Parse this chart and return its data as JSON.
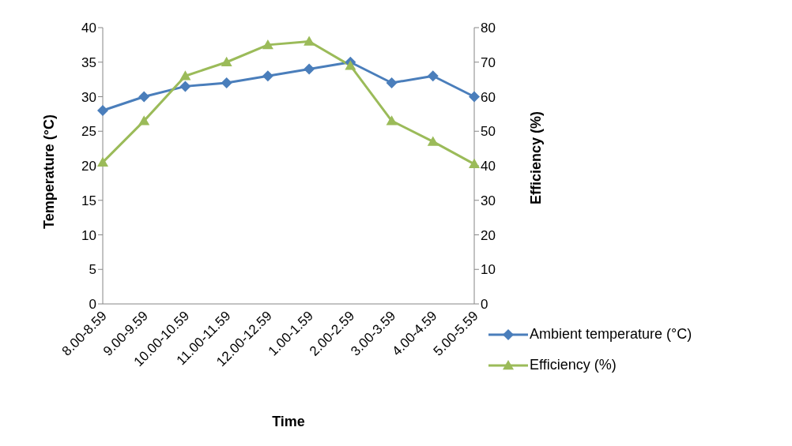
{
  "chart_data": {
    "type": "line",
    "xlabel": "Time",
    "ylabel": "Temperature (°C)",
    "y2label": "Efficiency (%)",
    "categories": [
      "8.00-8.59",
      "9.00-9.59",
      "10.00-10.59",
      "11.00-11.59",
      "12.00-12.59",
      "1.00-1.59",
      "2.00-2.59",
      "3.00-3.59",
      "4.00-4.59",
      "5.00-5.59"
    ],
    "series": [
      {
        "name": "Ambient temperature (°C)",
        "color": "#4a7ebb",
        "marker": "diamond",
        "values": [
          28,
          30,
          31.5,
          32,
          33,
          34,
          35,
          32,
          33,
          30
        ]
      },
      {
        "name": "Efficiency (%)",
        "color": "#9bbb59",
        "marker": "triangle",
        "axis": "y2",
        "values": [
          41,
          53,
          66,
          70,
          75,
          76,
          69,
          53,
          47,
          40.5
        ]
      }
    ],
    "ylim": [
      0,
      40
    ],
    "yticks": [
      0,
      5,
      10,
      15,
      20,
      25,
      30,
      35,
      40
    ],
    "y2lim": [
      0,
      80
    ],
    "y2ticks": [
      0,
      10,
      20,
      30,
      40,
      50,
      60,
      70,
      80
    ],
    "grid": false,
    "legend": "right"
  }
}
